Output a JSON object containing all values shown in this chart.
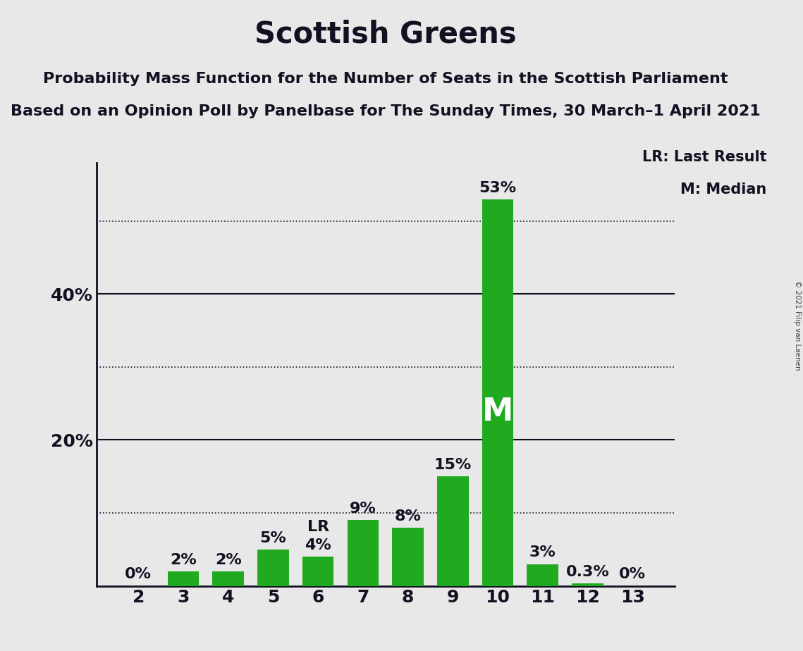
{
  "title": "Scottish Greens",
  "subtitle1": "Probability Mass Function for the Number of Seats in the Scottish Parliament",
  "subtitle2": "Based on an Opinion Poll by Panelbase for The Sunday Times, 30 March–1 April 2021",
  "copyright": "© 2021 Filip van Laenen",
  "categories": [
    2,
    3,
    4,
    5,
    6,
    7,
    8,
    9,
    10,
    11,
    12,
    13
  ],
  "values": [
    0,
    2,
    2,
    5,
    4,
    9,
    8,
    15,
    53,
    3,
    0.3,
    0
  ],
  "bar_color": "#1faa1f",
  "background_color": "#e8e8e8",
  "ylim": [
    0,
    58
  ],
  "median_bar": 10,
  "lr_bar": 6,
  "legend_lr": "LR: Last Result",
  "legend_m": "M: Median",
  "title_fontsize": 30,
  "subtitle_fontsize": 16,
  "bar_label_fontsize": 16,
  "axis_tick_fontsize": 18,
  "ytick_labels": [
    20,
    40
  ],
  "dotted_lines": [
    10,
    30,
    50
  ],
  "solid_lines": [
    20,
    40
  ]
}
